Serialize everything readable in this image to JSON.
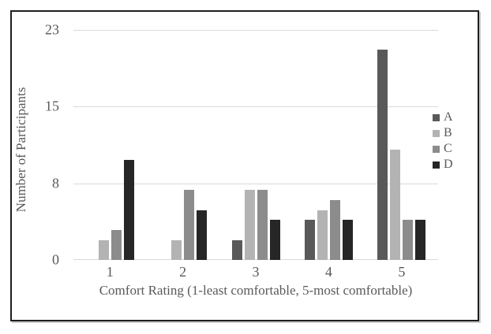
{
  "chart_data": {
    "type": "bar",
    "title": "",
    "xlabel": "Comfort Rating (1-least comfortable, 5-most comfortable)",
    "ylabel": "Number of Participants",
    "categories": [
      "1",
      "2",
      "3",
      "4",
      "5"
    ],
    "series": [
      {
        "name": "A",
        "color": "#595959",
        "values": [
          0,
          0,
          2,
          4,
          21
        ]
      },
      {
        "name": "B",
        "color": "#b3b3b3",
        "values": [
          2,
          2,
          7,
          5,
          11
        ]
      },
      {
        "name": "C",
        "color": "#8c8c8c",
        "values": [
          3,
          7,
          7,
          6,
          4
        ]
      },
      {
        "name": "D",
        "color": "#262626",
        "values": [
          10,
          5,
          4,
          4,
          4
        ]
      }
    ],
    "ylim": [
      0,
      23
    ],
    "y_tick_labels": [
      "0",
      "8",
      "15",
      "23"
    ],
    "grid": "horizontal",
    "legend_position": "right",
    "colors": {
      "text": "#595959",
      "gridline": "#d9d9d9",
      "frame_border": "#1f1f1f",
      "background": "#ffffff"
    }
  }
}
